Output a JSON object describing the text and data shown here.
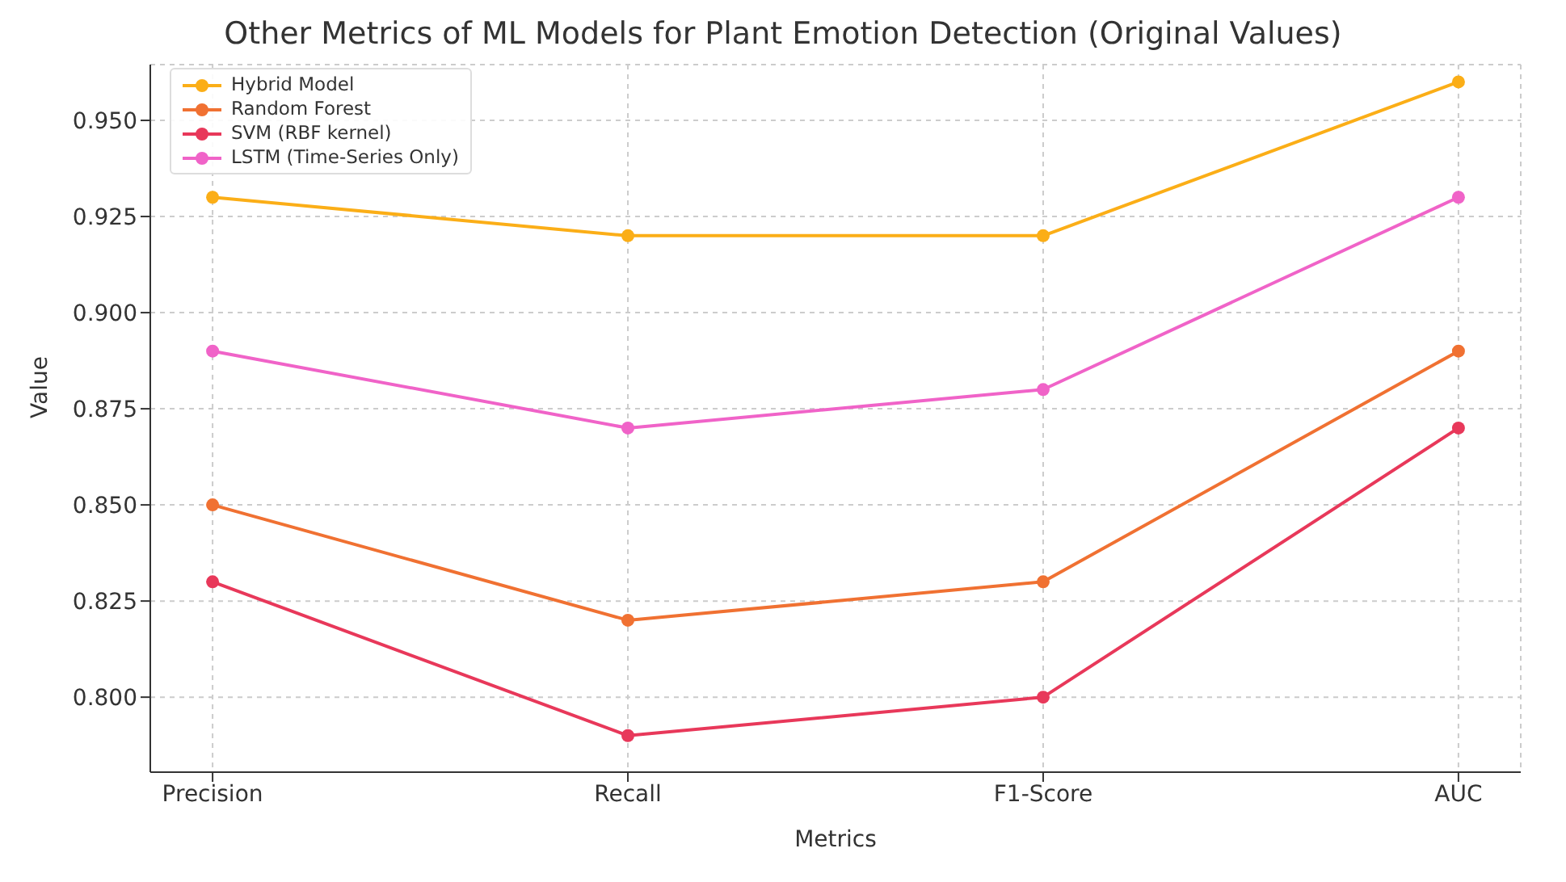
{
  "chart_data": {
    "type": "line",
    "title": "Other Metrics of ML Models for Plant Emotion Detection (Original Values)",
    "xlabel": "Metrics",
    "ylabel": "Value",
    "categories": [
      "Precision",
      "Recall",
      "F1-Score",
      "AUC"
    ],
    "series": [
      {
        "name": "Hybrid Model",
        "color": "#fbae17",
        "values": [
          0.93,
          0.92,
          0.92,
          0.96
        ]
      },
      {
        "name": "Random Forest",
        "color": "#f07132",
        "values": [
          0.85,
          0.82,
          0.83,
          0.89
        ]
      },
      {
        "name": "SVM (RBF kernel)",
        "color": "#e8385a",
        "values": [
          0.83,
          0.79,
          0.8,
          0.87
        ]
      },
      {
        "name": "LSTM (Time-Series Only)",
        "color": "#f063c8",
        "values": [
          0.89,
          0.87,
          0.88,
          0.93
        ]
      }
    ],
    "ylim": [
      0.7805,
      0.9645
    ],
    "yticks": [
      {
        "value": 0.8,
        "label": "0.800"
      },
      {
        "value": 0.825,
        "label": "0.825"
      },
      {
        "value": 0.85,
        "label": "0.850"
      },
      {
        "value": 0.875,
        "label": "0.875"
      },
      {
        "value": 0.9,
        "label": "0.900"
      },
      {
        "value": 0.925,
        "label": "0.925"
      },
      {
        "value": 0.95,
        "label": "0.950"
      }
    ],
    "grid": true,
    "legend": "top left",
    "marker": "circle",
    "line_style": "solid"
  }
}
